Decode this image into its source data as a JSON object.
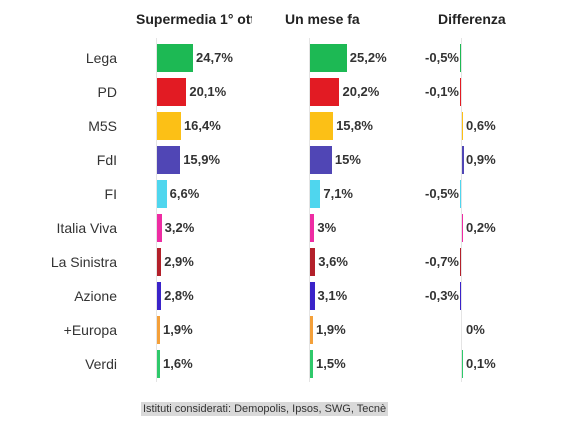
{
  "chart_data": {
    "type": "table",
    "columns": [
      "Supermedia 1° ott",
      "Un mese fa",
      "Differenza"
    ],
    "rows": [
      {
        "party": "Lega",
        "supermedia": 24.7,
        "supermedia_label": "24,7%",
        "month_ago": 25.2,
        "month_ago_label": "25,2%",
        "diff": -0.5,
        "diff_label": "-0,5%",
        "color": "#1db954"
      },
      {
        "party": "PD",
        "supermedia": 20.1,
        "supermedia_label": "20,1%",
        "month_ago": 20.2,
        "month_ago_label": "20,2%",
        "diff": -0.1,
        "diff_label": "-0,1%",
        "color": "#e21b23"
      },
      {
        "party": "M5S",
        "supermedia": 16.4,
        "supermedia_label": "16,4%",
        "month_ago": 15.8,
        "month_ago_label": "15,8%",
        "diff": 0.6,
        "diff_label": "0,6%",
        "color": "#fcc016"
      },
      {
        "party": "FdI",
        "supermedia": 15.9,
        "supermedia_label": "15,9%",
        "month_ago": 15.0,
        "month_ago_label": "15%",
        "diff": 0.9,
        "diff_label": "0,9%",
        "color": "#5046b5"
      },
      {
        "party": "FI",
        "supermedia": 6.6,
        "supermedia_label": "6,6%",
        "month_ago": 7.1,
        "month_ago_label": "7,1%",
        "diff": -0.5,
        "diff_label": "-0,5%",
        "color": "#4fd6ee"
      },
      {
        "party": "Italia Viva",
        "supermedia": 3.2,
        "supermedia_label": "3,2%",
        "month_ago": 3.0,
        "month_ago_label": "3%",
        "diff": 0.2,
        "diff_label": "0,2%",
        "color": "#ee2ca3"
      },
      {
        "party": "La Sinistra",
        "supermedia": 2.9,
        "supermedia_label": "2,9%",
        "month_ago": 3.6,
        "month_ago_label": "3,6%",
        "diff": -0.7,
        "diff_label": "-0,7%",
        "color": "#b3202a"
      },
      {
        "party": "Azione",
        "supermedia": 2.8,
        "supermedia_label": "2,8%",
        "month_ago": 3.1,
        "month_ago_label": "3,1%",
        "diff": -0.3,
        "diff_label": "-0,3%",
        "color": "#3a23c9"
      },
      {
        "party": "+Europa",
        "supermedia": 1.9,
        "supermedia_label": "1,9%",
        "month_ago": 1.9,
        "month_ago_label": "1,9%",
        "diff": 0.0,
        "diff_label": "0%",
        "color": "#f4a03a"
      },
      {
        "party": "Verdi",
        "supermedia": 1.6,
        "supermedia_label": "1,6%",
        "month_ago": 1.5,
        "month_ago_label": "1,5%",
        "diff": 0.1,
        "diff_label": "0,1%",
        "color": "#2fc96b"
      }
    ],
    "grid": false
  },
  "footnote": "Istituti considerati: Demopolis, Ipsos, SWG, Tecnè"
}
